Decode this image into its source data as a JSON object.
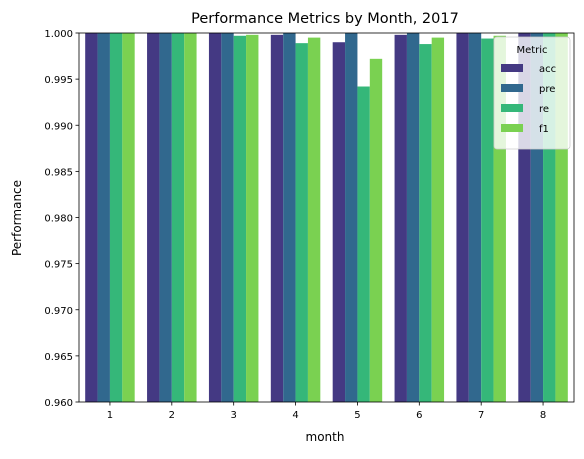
{
  "chart_data": {
    "type": "bar",
    "title": "Performance Metrics by Month, 2017",
    "xlabel": "month",
    "ylabel": "Performance",
    "categories": [
      "1",
      "2",
      "3",
      "4",
      "5",
      "6",
      "7",
      "8"
    ],
    "ylim": [
      0.96,
      1.0
    ],
    "yticks": [
      "0.960",
      "0.965",
      "0.970",
      "0.975",
      "0.980",
      "0.985",
      "0.990",
      "0.995",
      "1.000"
    ],
    "grid": false,
    "legend": {
      "title": "Metric",
      "placement": "top-right"
    },
    "series": [
      {
        "name": "acc",
        "color": "#443983",
        "values": [
          1.0,
          1.0,
          1.0,
          0.9998,
          0.999,
          0.9998,
          1.0,
          1.0
        ]
      },
      {
        "name": "pre",
        "color": "#31688e",
        "values": [
          1.0,
          1.0,
          1.0,
          1.0,
          1.0,
          1.0,
          1.0,
          1.0
        ]
      },
      {
        "name": "re",
        "color": "#35b779",
        "values": [
          1.0,
          1.0,
          0.9997,
          0.9989,
          0.9942,
          0.9988,
          0.9994,
          1.0
        ]
      },
      {
        "name": "f1",
        "color": "#7ad151",
        "values": [
          1.0,
          1.0,
          0.9998,
          0.9995,
          0.9972,
          0.9995,
          0.9997,
          1.0
        ]
      }
    ]
  }
}
